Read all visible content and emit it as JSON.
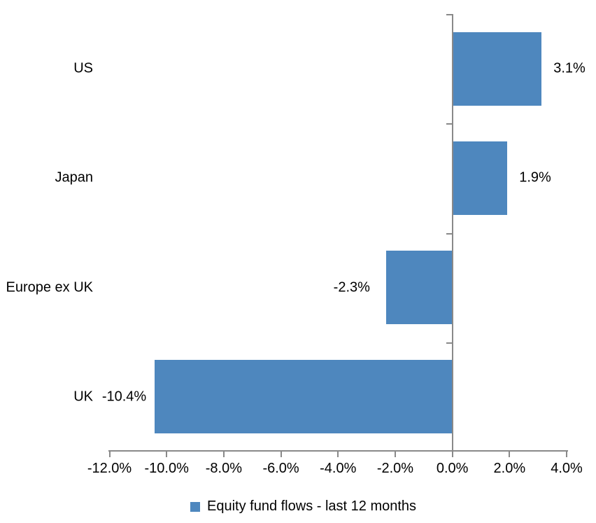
{
  "chart_data": {
    "type": "bar",
    "orientation": "horizontal",
    "title": "",
    "xlabel": "",
    "ylabel": "",
    "categories": [
      "US",
      "Japan",
      "Europe ex UK",
      "UK"
    ],
    "series": [
      {
        "name": "Equity fund flows - last 12 months",
        "values": [
          3.1,
          1.9,
          -2.3,
          -10.4
        ],
        "data_labels": [
          "3.1%",
          "1.9%",
          "-2.3%",
          "-10.4%"
        ]
      }
    ],
    "xlim": [
      -12,
      4
    ],
    "x_ticks": [
      -12,
      -10,
      -8,
      -6,
      -4,
      -2,
      0,
      2,
      4
    ],
    "x_tick_labels": [
      "-12.0%",
      "-10.0%",
      "-8.0%",
      "-6.0%",
      "-4.0%",
      "-2.0%",
      "0.0%",
      "2.0%",
      "4.0%"
    ],
    "grid": false,
    "legend_position": "bottom"
  },
  "legend": {
    "label": "Equity fund flows - last 12 months"
  },
  "colors": {
    "bar": "#4E87BE",
    "axis": "#898989",
    "text": "#000000",
    "background": "#FFFFFF"
  }
}
